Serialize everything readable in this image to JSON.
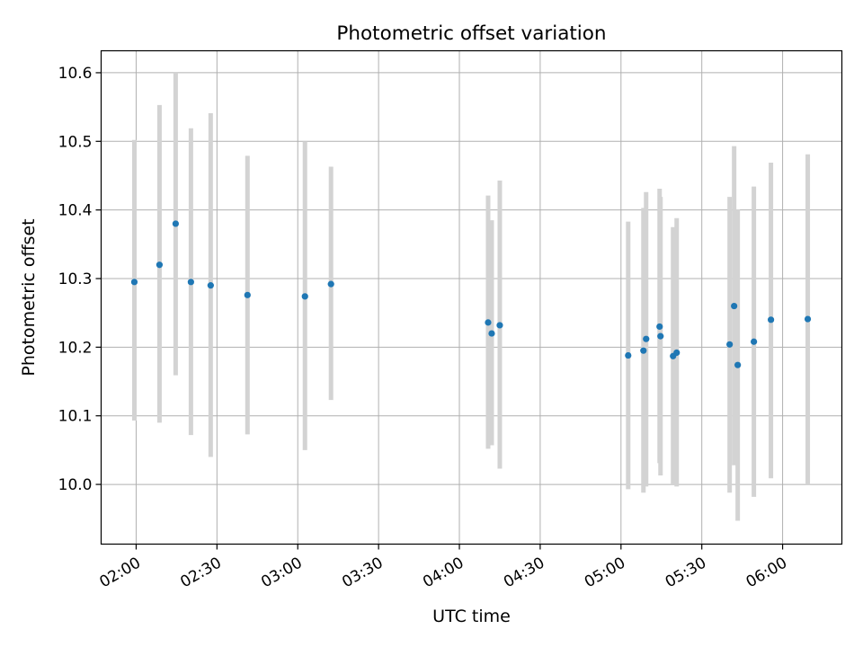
{
  "chart_data": {
    "type": "scatter",
    "title": "Photometric offset variation",
    "xlabel": "UTC time",
    "ylabel": "Photometric offset",
    "x_axis_type": "time",
    "xlim": [
      "01:47",
      "06:22"
    ],
    "ylim": [
      9.913,
      10.632
    ],
    "x_ticks": [
      "02:00",
      "02:30",
      "03:00",
      "03:30",
      "04:00",
      "04:30",
      "05:00",
      "05:30",
      "06:00"
    ],
    "y_ticks": [
      10.0,
      10.1,
      10.2,
      10.3,
      10.4,
      10.5,
      10.6
    ],
    "grid": true,
    "legend": "none",
    "colors": {
      "point": "#1f77b4",
      "errorbar": "#d3d3d3",
      "grid": "#b0b0b0"
    },
    "series": [
      {
        "points": [
          {
            "x": "01:59:20",
            "y": 10.295,
            "ylow": 10.093,
            "yhigh": 10.502
          },
          {
            "x": "02:08:40",
            "y": 10.32,
            "ylow": 10.09,
            "yhigh": 10.553
          },
          {
            "x": "02:14:40",
            "y": 10.38,
            "ylow": 10.159,
            "yhigh": 10.6
          },
          {
            "x": "02:20:20",
            "y": 10.295,
            "ylow": 10.072,
            "yhigh": 10.519
          },
          {
            "x": "02:27:40",
            "y": 10.29,
            "ylow": 10.04,
            "yhigh": 10.541
          },
          {
            "x": "02:41:20",
            "y": 10.276,
            "ylow": 10.073,
            "yhigh": 10.479
          },
          {
            "x": "03:02:40",
            "y": 10.274,
            "ylow": 10.05,
            "yhigh": 10.5
          },
          {
            "x": "03:12:20",
            "y": 10.292,
            "ylow": 10.123,
            "yhigh": 10.463
          },
          {
            "x": "04:10:40",
            "y": 10.236,
            "ylow": 10.052,
            "yhigh": 10.421
          },
          {
            "x": "04:12:00",
            "y": 10.22,
            "ylow": 10.057,
            "yhigh": 10.385
          },
          {
            "x": "04:15:00",
            "y": 10.232,
            "ylow": 10.023,
            "yhigh": 10.443
          },
          {
            "x": "05:02:40",
            "y": 10.188,
            "ylow": 9.993,
            "yhigh": 10.383
          },
          {
            "x": "05:08:20",
            "y": 10.195,
            "ylow": 9.988,
            "yhigh": 10.403
          },
          {
            "x": "05:09:20",
            "y": 10.212,
            "ylow": 9.997,
            "yhigh": 10.426
          },
          {
            "x": "05:14:20",
            "y": 10.23,
            "ylow": 10.031,
            "yhigh": 10.431
          },
          {
            "x": "05:14:40",
            "y": 10.216,
            "ylow": 10.013,
            "yhigh": 10.419
          },
          {
            "x": "05:19:20",
            "y": 10.187,
            "ylow": 10.0,
            "yhigh": 10.375
          },
          {
            "x": "05:20:40",
            "y": 10.192,
            "ylow": 9.997,
            "yhigh": 10.388
          },
          {
            "x": "05:40:20",
            "y": 10.204,
            "ylow": 9.988,
            "yhigh": 10.419
          },
          {
            "x": "05:42:00",
            "y": 10.26,
            "ylow": 10.028,
            "yhigh": 10.493
          },
          {
            "x": "05:43:20",
            "y": 10.174,
            "ylow": 9.947,
            "yhigh": 10.401
          },
          {
            "x": "05:49:20",
            "y": 10.208,
            "ylow": 9.982,
            "yhigh": 10.434
          },
          {
            "x": "05:55:40",
            "y": 10.24,
            "ylow": 10.009,
            "yhigh": 10.469
          },
          {
            "x": "06:09:20",
            "y": 10.241,
            "ylow": 10.0,
            "yhigh": 10.481
          }
        ]
      }
    ]
  }
}
